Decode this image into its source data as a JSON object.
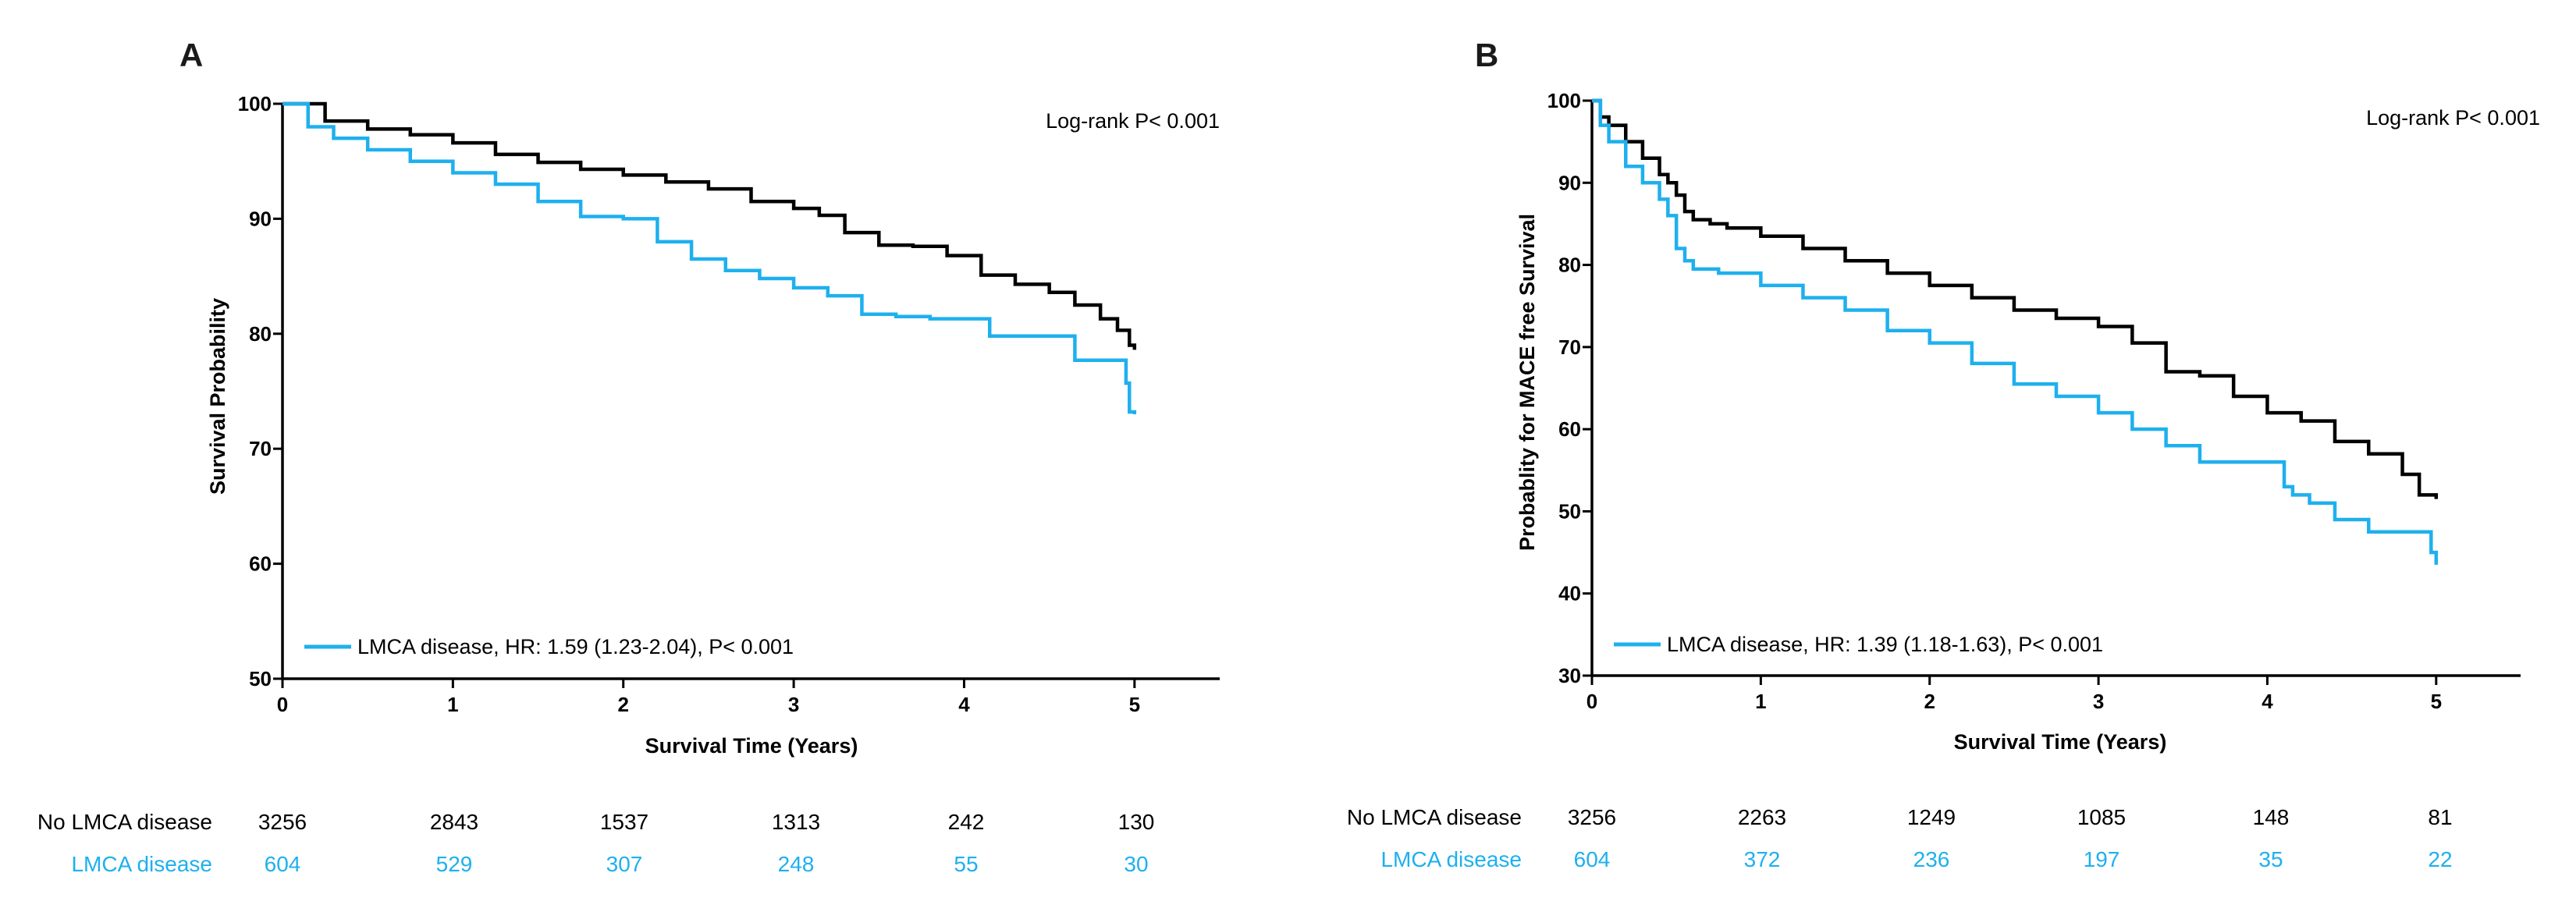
{
  "colors": {
    "reference": "#000000",
    "lmca": "#1EB0EE"
  },
  "chart_data": [
    {
      "type": "line",
      "panel": "A",
      "xlabel": "Survival Time (Years)",
      "ylabel": "Survival Probability",
      "xlim": [
        0,
        5.5
      ],
      "ylim": [
        50,
        100
      ],
      "xticks": [
        0,
        1,
        2,
        3,
        4,
        5
      ],
      "yticks": [
        50,
        60,
        70,
        80,
        90,
        100
      ],
      "annotation": "Log-rank P< 0.001",
      "legend": {
        "label": "LMCA disease, HR: 1.59 (1.23-2.04), P< 0.001",
        "position": "bottom-left"
      },
      "series": [
        {
          "name": "No LMCA disease",
          "color": "#000000",
          "x": [
            0,
            0.25,
            0.5,
            0.75,
            1.0,
            1.25,
            1.5,
            1.75,
            2.0,
            2.25,
            2.5,
            2.75,
            3.0,
            3.15,
            3.3,
            3.5,
            3.7,
            3.9,
            4.1,
            4.3,
            4.5,
            4.65,
            4.8,
            4.9,
            4.97,
            5.0
          ],
          "y": [
            100,
            98.5,
            97.8,
            97.3,
            96.6,
            95.6,
            94.9,
            94.3,
            93.8,
            93.2,
            92.6,
            91.5,
            90.9,
            90.3,
            88.8,
            87.7,
            87.6,
            86.8,
            85.1,
            84.3,
            83.6,
            82.5,
            81.3,
            80.3,
            79.0,
            78.6
          ]
        },
        {
          "name": "LMCA disease",
          "color": "#1EB0EE",
          "x": [
            0,
            0.15,
            0.3,
            0.5,
            0.75,
            1.0,
            1.25,
            1.5,
            1.75,
            2.0,
            2.2,
            2.4,
            2.6,
            2.8,
            3.0,
            3.2,
            3.4,
            3.6,
            3.8,
            4.0,
            4.15,
            4.4,
            4.6,
            4.65,
            4.8,
            4.85,
            4.95,
            4.97,
            5.0
          ],
          "y": [
            100,
            98.0,
            97.0,
            96.0,
            95.0,
            94.0,
            93.0,
            91.5,
            90.2,
            90.0,
            88.0,
            86.5,
            85.5,
            84.8,
            84.0,
            83.3,
            81.7,
            81.5,
            81.3,
            81.3,
            79.8,
            79.8,
            79.8,
            77.7,
            77.7,
            77.7,
            75.7,
            73.2,
            73.0
          ]
        }
      ],
      "risk_table": {
        "rows": [
          {
            "label": "No LMCA disease",
            "values": [
              "3256",
              "2843",
              "1537",
              "1313",
              "242",
              "130"
            ]
          },
          {
            "label": "LMCA disease",
            "values": [
              "604",
              "529",
              "307",
              "248",
              "55",
              "30"
            ]
          }
        ]
      }
    },
    {
      "type": "line",
      "panel": "B",
      "xlabel": "Survival Time (Years)",
      "ylabel": "Probablity for MACE free Survival",
      "xlim": [
        0,
        5.5
      ],
      "ylim": [
        30,
        100
      ],
      "xticks": [
        0,
        1,
        2,
        3,
        4,
        5
      ],
      "yticks": [
        30,
        40,
        50,
        60,
        70,
        80,
        90,
        100
      ],
      "annotation": "Log-rank P< 0.001",
      "legend": {
        "label": "LMCA disease, HR: 1.39 (1.18-1.63), P< 0.001",
        "position": "bottom-left"
      },
      "series": [
        {
          "name": "No LMCA disease",
          "color": "#000000",
          "x": [
            0,
            0.05,
            0.1,
            0.2,
            0.3,
            0.4,
            0.45,
            0.5,
            0.55,
            0.6,
            0.7,
            0.8,
            1.0,
            1.25,
            1.5,
            1.75,
            2.0,
            2.25,
            2.5,
            2.75,
            3.0,
            3.2,
            3.4,
            3.6,
            3.8,
            4.0,
            4.2,
            4.4,
            4.6,
            4.8,
            4.9,
            5.0
          ],
          "y": [
            100,
            98.0,
            97.0,
            95.0,
            93.0,
            91.0,
            90.0,
            88.5,
            86.5,
            85.5,
            85.0,
            84.5,
            83.5,
            82.0,
            80.5,
            79.0,
            77.5,
            76.0,
            74.5,
            73.5,
            72.5,
            70.5,
            67.0,
            66.5,
            64.0,
            62.0,
            61.0,
            58.5,
            57.0,
            54.5,
            52.0,
            51.5
          ]
        },
        {
          "name": "LMCA disease",
          "color": "#1EB0EE",
          "x": [
            0,
            0.05,
            0.1,
            0.2,
            0.3,
            0.4,
            0.45,
            0.5,
            0.55,
            0.6,
            0.75,
            1.0,
            1.25,
            1.5,
            1.75,
            2.0,
            2.25,
            2.5,
            2.75,
            3.0,
            3.2,
            3.4,
            3.6,
            3.8,
            4.0,
            4.1,
            4.15,
            4.25,
            4.4,
            4.6,
            4.8,
            4.97,
            5.0
          ],
          "y": [
            100,
            97.0,
            95.0,
            92.0,
            90.0,
            88.0,
            86.0,
            82.0,
            80.5,
            79.5,
            79.0,
            77.5,
            76.0,
            74.5,
            72.0,
            70.5,
            68.0,
            65.5,
            64.0,
            62.0,
            60.0,
            58.0,
            56.0,
            56.0,
            56.0,
            53.0,
            52.0,
            51.0,
            49.0,
            47.5,
            47.5,
            45.0,
            43.5
          ]
        }
      ],
      "risk_table": {
        "rows": [
          {
            "label": "No LMCA disease",
            "values": [
              "3256",
              "2263",
              "1249",
              "1085",
              "148",
              "81"
            ]
          },
          {
            "label": "LMCA disease",
            "values": [
              "604",
              "372",
              "236",
              "197",
              "35",
              "22"
            ]
          }
        ]
      }
    }
  ]
}
